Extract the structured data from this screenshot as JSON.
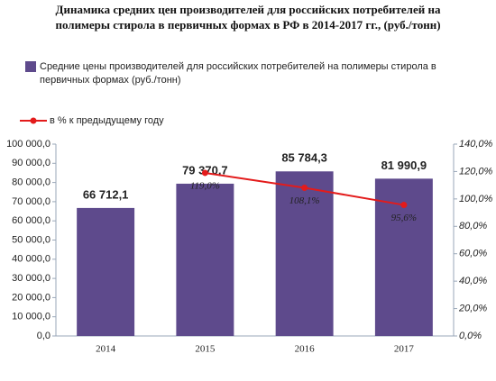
{
  "chart_data": {
    "type": "bar",
    "title": "Динамика средних цен производителей для российских потребителей на полимеры стирола в первичных формах в РФ в 2014-2017 гг., (руб./тонн)",
    "categories": [
      "2014",
      "2015",
      "2016",
      "2017"
    ],
    "series": [
      {
        "name": "Средние цены производителей для российских потребителей на полимеры стирола в первичных формах (руб./тонн)",
        "type": "bar",
        "color": "#5e4a8c",
        "values": [
          66712.1,
          79370.7,
          85784.3,
          81990.9
        ],
        "value_labels": [
          "66 712,1",
          "79 370,7",
          "85 784,3",
          "81 990,9"
        ]
      },
      {
        "name": "в % к предыдущему году",
        "type": "line",
        "axis": "y2",
        "color": "#e31b1b",
        "values": [
          null,
          119.0,
          108.1,
          95.6
        ],
        "value_labels": [
          null,
          "119,0%",
          "108,1%",
          "95,6%"
        ]
      }
    ],
    "ylim": [
      0,
      100000
    ],
    "yticks": [
      {
        "value": 0,
        "label": "0,0"
      },
      {
        "value": 10000,
        "label": "10 000,0"
      },
      {
        "value": 20000,
        "label": "20 000,0"
      },
      {
        "value": 30000,
        "label": "30 000,0"
      },
      {
        "value": 40000,
        "label": "40 000,0"
      },
      {
        "value": 50000,
        "label": "50 000,0"
      },
      {
        "value": 60000,
        "label": "60 000,0"
      },
      {
        "value": 70000,
        "label": "70 000,0"
      },
      {
        "value": 80000,
        "label": "80 000,0"
      },
      {
        "value": 90000,
        "label": "90 000,0"
      },
      {
        "value": 100000,
        "label": "100 000,0"
      }
    ],
    "y2lim": [
      0,
      140
    ],
    "y2ticks": [
      {
        "value": 0,
        "label": "0,0%"
      },
      {
        "value": 20,
        "label": "20,0%"
      },
      {
        "value": 40,
        "label": "40,0%"
      },
      {
        "value": 60,
        "label": "60,0%"
      },
      {
        "value": 80,
        "label": "80,0%"
      },
      {
        "value": 100,
        "label": "100,0%"
      },
      {
        "value": 120,
        "label": "120,0%"
      },
      {
        "value": 140,
        "label": "140,0%"
      }
    ]
  }
}
